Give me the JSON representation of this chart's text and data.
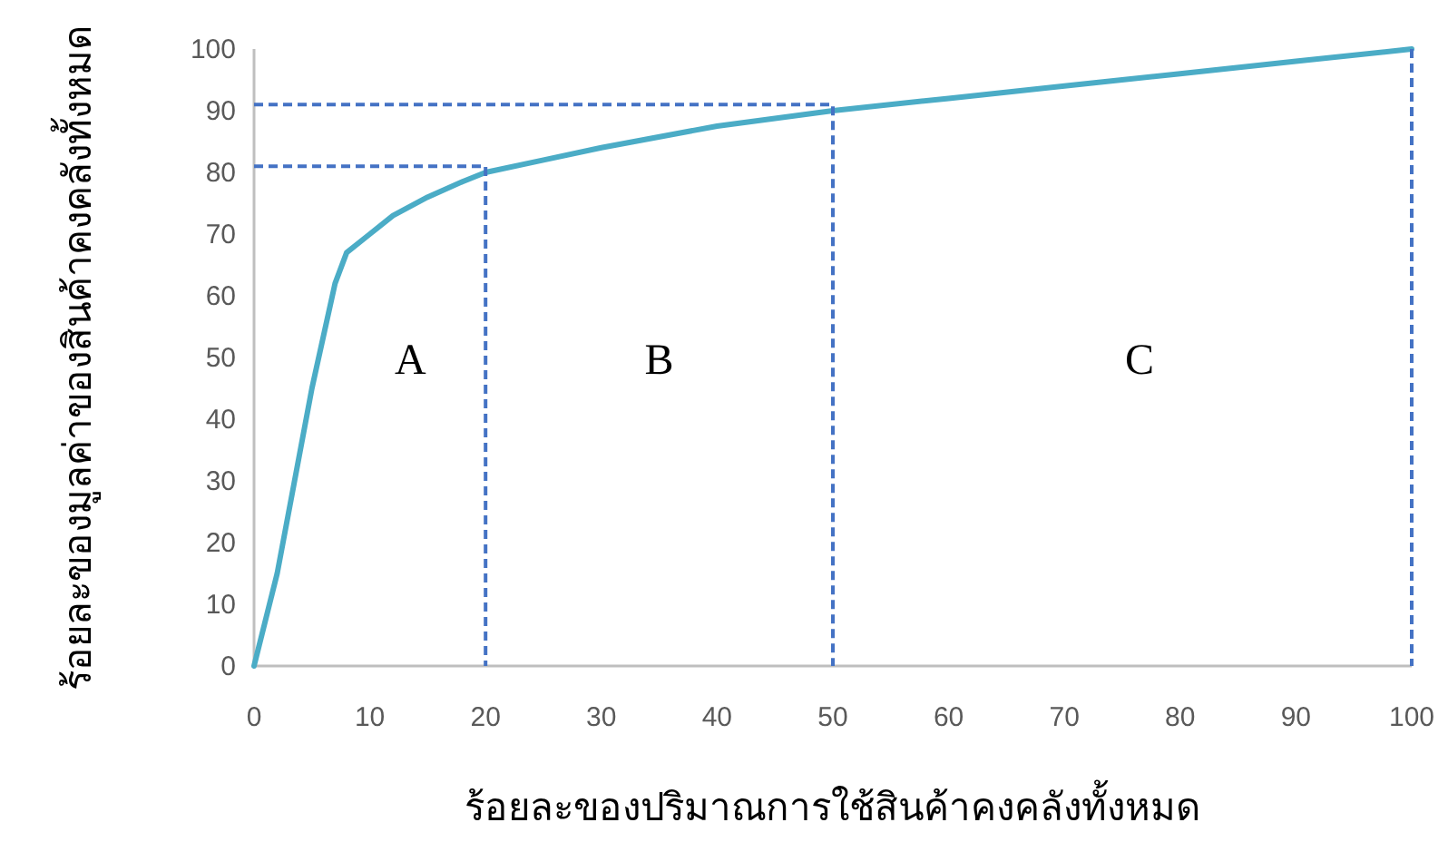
{
  "chart_data": {
    "type": "line",
    "xlabel": "ร้อยละของปริมาณการใช้สินค้าคงคลังทั้งหมด",
    "ylabel": "ร้อยละของมูลค่าของสินค้าคงคลังทั้งหมด",
    "xlim": [
      0,
      100
    ],
    "ylim": [
      0,
      100
    ],
    "xticks": [
      0,
      10,
      20,
      30,
      40,
      50,
      60,
      70,
      80,
      90,
      100
    ],
    "yticks": [
      0,
      10,
      20,
      30,
      40,
      50,
      60,
      70,
      80,
      90,
      100
    ],
    "grid": false,
    "marker": "none",
    "ref_lines": [
      {
        "axis": "x",
        "value": 100,
        "color": "#4472c4",
        "line_style": "dashed"
      }
    ],
    "series": [
      {
        "color": "#4bacc6",
        "line_style": "solid",
        "x": [
          0,
          2,
          4,
          5,
          7,
          8,
          10,
          12,
          15,
          18,
          20,
          25,
          30,
          40,
          50,
          60,
          70,
          80,
          90,
          100
        ],
        "values": [
          0,
          15,
          35,
          45,
          62,
          67,
          70,
          73,
          76,
          78.5,
          80,
          82,
          84,
          87.5,
          90,
          92,
          94,
          96,
          98,
          100
        ]
      },
      {
        "color": "#4472c4",
        "line_style": "dashed",
        "x": [
          0,
          20,
          20
        ],
        "values": [
          81,
          81,
          0
        ]
      },
      {
        "color": "#4472c4",
        "line_style": "dashed",
        "x": [
          0,
          50,
          50
        ],
        "values": [
          91,
          91,
          0
        ]
      }
    ],
    "annotations": [
      "A",
      "B",
      "C"
    ]
  }
}
